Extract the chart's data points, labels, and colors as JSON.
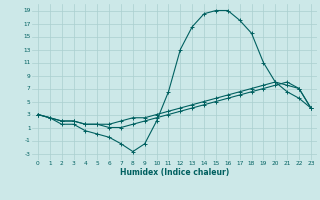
{
  "xlabel": "Humidex (Indice chaleur)",
  "bg_color": "#cce8e8",
  "grid_color": "#aacfcf",
  "line_color": "#006060",
  "xlim": [
    -0.5,
    23.5
  ],
  "ylim": [
    -4,
    20
  ],
  "xticks": [
    0,
    1,
    2,
    3,
    4,
    5,
    6,
    7,
    8,
    9,
    10,
    11,
    12,
    13,
    14,
    15,
    16,
    17,
    18,
    19,
    20,
    21,
    22,
    23
  ],
  "yticks": [
    -3,
    -1,
    1,
    3,
    5,
    7,
    9,
    11,
    13,
    15,
    17,
    19
  ],
  "line1_x": [
    0,
    1,
    2,
    3,
    4,
    5,
    6,
    7,
    8,
    9,
    10,
    11,
    12,
    13,
    14,
    15,
    16,
    17,
    18,
    19,
    20,
    21,
    22,
    23
  ],
  "line1_y": [
    3,
    2.5,
    2,
    2,
    1.5,
    1.5,
    1.5,
    2,
    2.5,
    2.5,
    3,
    3.5,
    4,
    4.5,
    5,
    5.5,
    6,
    6.5,
    7,
    7.5,
    8,
    7.5,
    7,
    4
  ],
  "line2_x": [
    0,
    2,
    3,
    4,
    5,
    6,
    7,
    8,
    9,
    10,
    11,
    12,
    13,
    14,
    15,
    16,
    17,
    18,
    19,
    20,
    21,
    22,
    23
  ],
  "line2_y": [
    3,
    2,
    2,
    1.5,
    1.5,
    1,
    1,
    1.5,
    2,
    2.5,
    3,
    3.5,
    4,
    4.5,
    5,
    5.5,
    6,
    6.5,
    7,
    7.5,
    8,
    7,
    4
  ],
  "line3_x": [
    0,
    1,
    2,
    3,
    4,
    5,
    6,
    7,
    8,
    9,
    10,
    11,
    12,
    13,
    14,
    15,
    16,
    17,
    18,
    19,
    20,
    21,
    22,
    23
  ],
  "line3_y": [
    3,
    2.5,
    1.5,
    1.5,
    0.5,
    0,
    -0.5,
    -1.5,
    -2.7,
    -1.5,
    2,
    6.5,
    13,
    16.5,
    18.5,
    19,
    19,
    17.5,
    15.5,
    11,
    8,
    6.5,
    5.5,
    4
  ]
}
